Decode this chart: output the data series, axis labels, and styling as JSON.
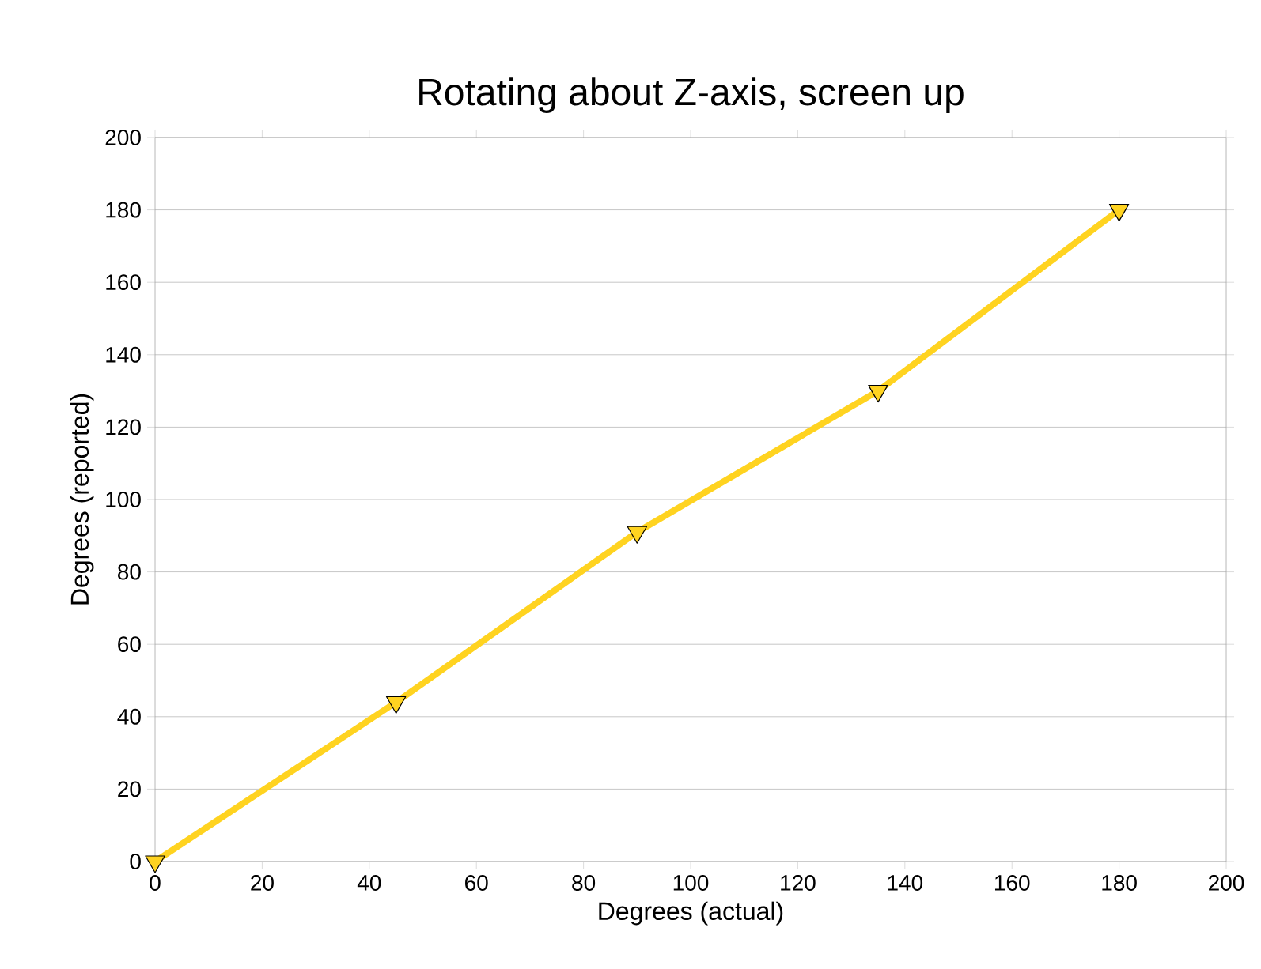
{
  "chart_data": {
    "type": "line",
    "title": "Rotating about Z-axis, screen up",
    "xlabel": "Degrees (actual)",
    "ylabel": "Degrees (reported)",
    "x": [
      0,
      45,
      90,
      135,
      180
    ],
    "series": [
      {
        "color": "#ffd320",
        "values": [
          0,
          44,
          91,
          130,
          180
        ]
      }
    ],
    "xlim": [
      0,
      200
    ],
    "xticks": [
      0,
      20,
      40,
      60,
      80,
      100,
      120,
      140,
      160,
      180,
      200
    ],
    "ylim": [
      0,
      200
    ],
    "yticks": [
      0,
      20,
      40,
      60,
      80,
      100,
      120,
      140,
      160,
      180,
      200
    ],
    "grid": "y",
    "marker": "triangle",
    "line_style": "solid"
  }
}
